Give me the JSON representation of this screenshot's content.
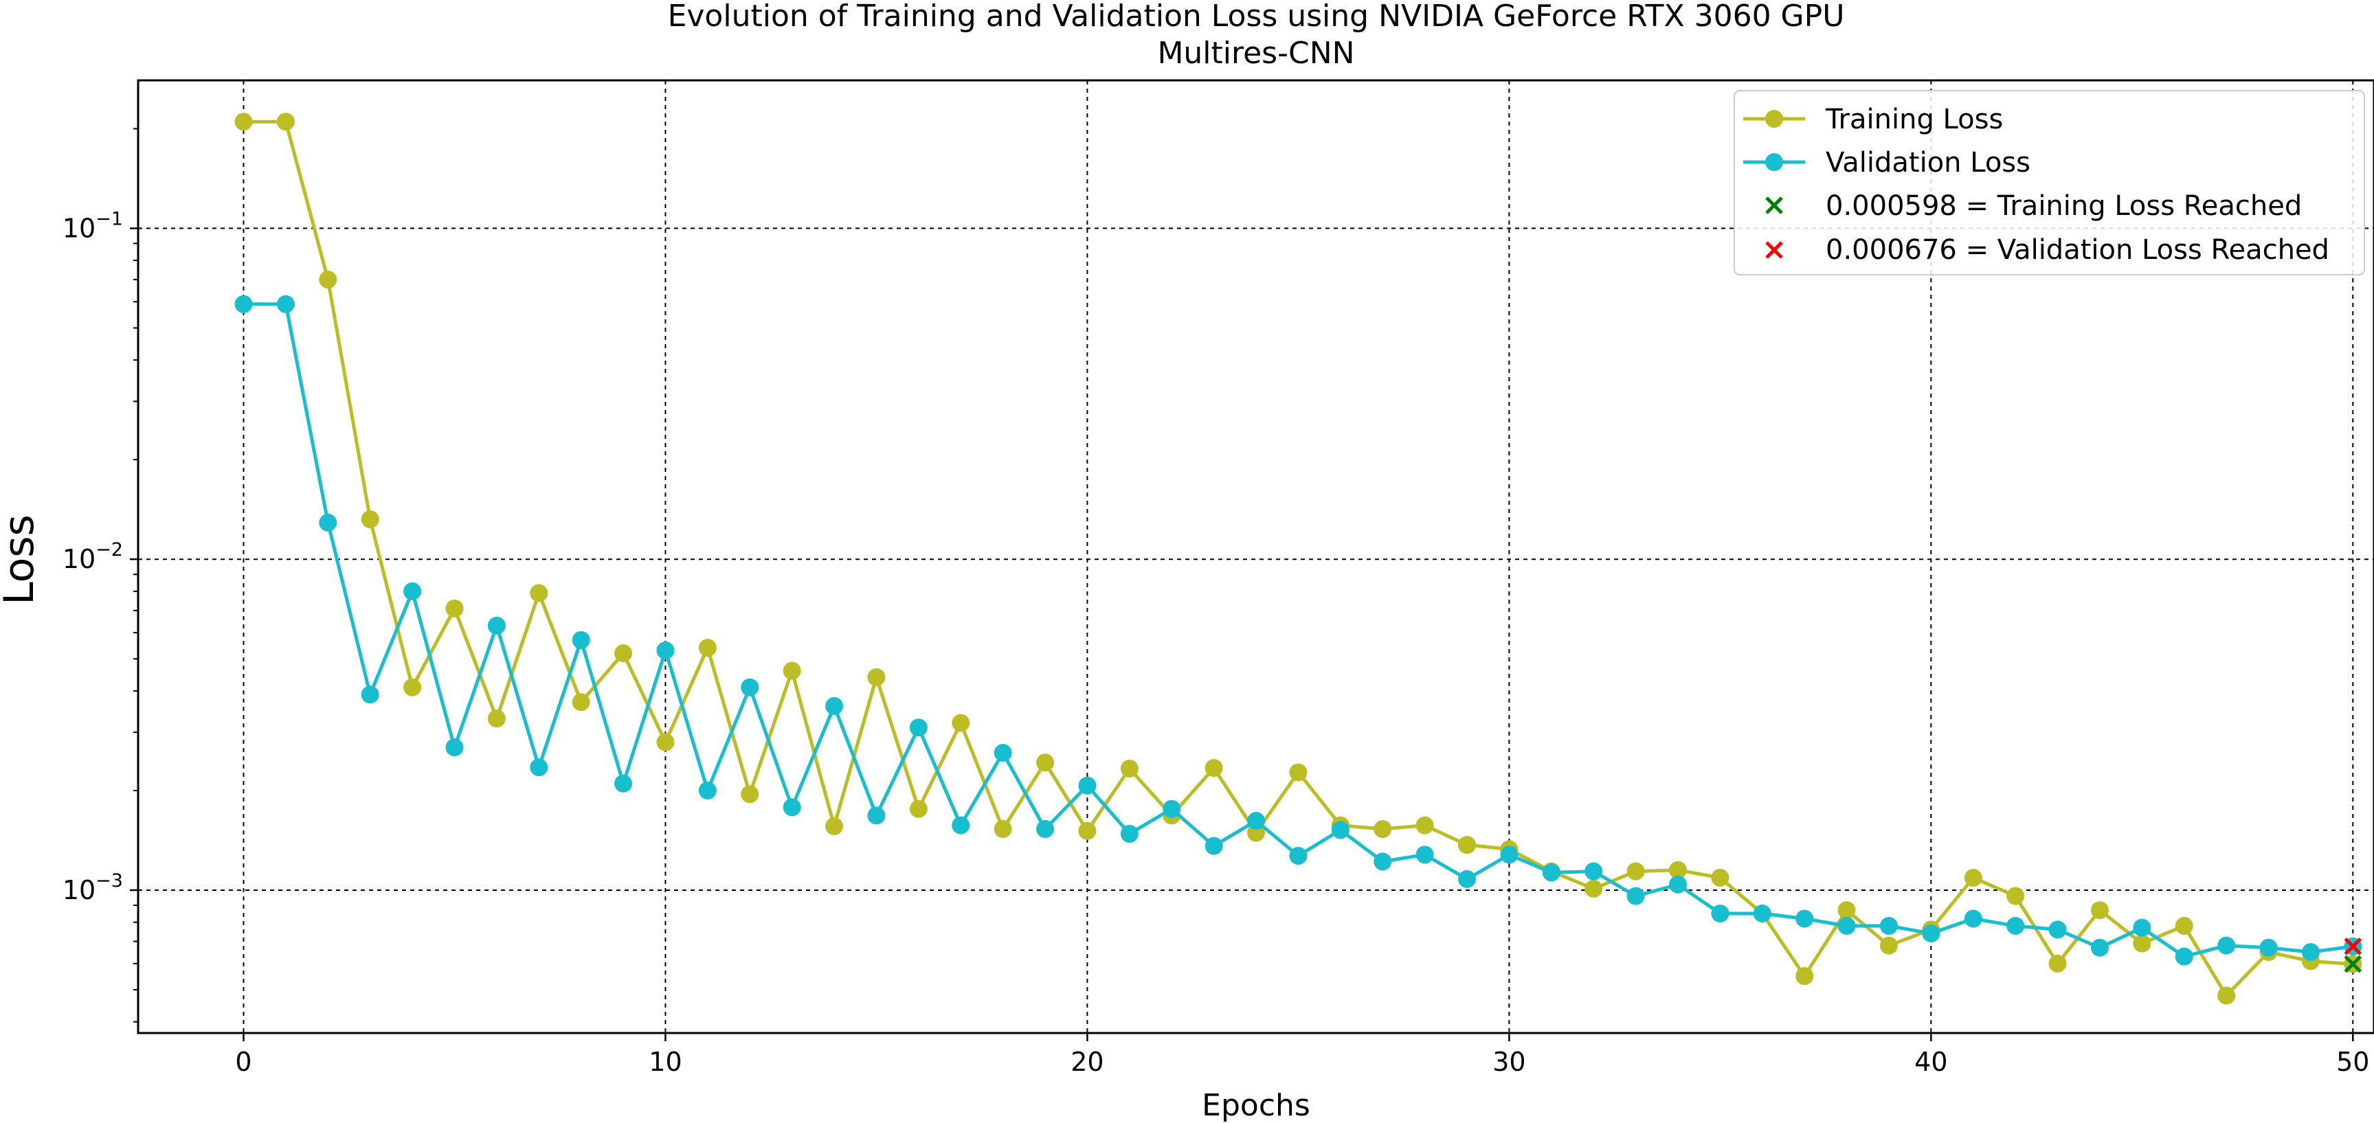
{
  "chart_data": {
    "type": "line",
    "title": "Evolution of Training and Validation Loss using NVIDIA GeForce RTX 3060 GPU",
    "subtitle": "Multires-CNN",
    "xlabel": "Epochs",
    "ylabel": "Loss",
    "yscale": "log",
    "xlim": [
      -2.5,
      50.5
    ],
    "ylim": [
      0.00037,
      0.28
    ],
    "grid": true,
    "legend_position": "top-right",
    "x_ticks": [
      {
        "value": 0,
        "label": "0"
      },
      {
        "value": 10,
        "label": "10"
      },
      {
        "value": 20,
        "label": "20"
      },
      {
        "value": 30,
        "label": "30"
      },
      {
        "value": 40,
        "label": "40"
      },
      {
        "value": 50,
        "label": "50"
      }
    ],
    "y_ticks": [
      {
        "value": 0.1,
        "base": "10",
        "exp": "−1"
      },
      {
        "value": 0.01,
        "base": "10",
        "exp": "−2"
      },
      {
        "value": 0.001,
        "base": "10",
        "exp": "−3"
      }
    ],
    "x": [
      0,
      1,
      2,
      3,
      4,
      5,
      6,
      7,
      8,
      9,
      10,
      11,
      12,
      13,
      14,
      15,
      16,
      17,
      18,
      19,
      20,
      21,
      22,
      23,
      24,
      25,
      26,
      27,
      28,
      29,
      30,
      31,
      32,
      33,
      34,
      35,
      36,
      37,
      38,
      39,
      40,
      41,
      42,
      43,
      44,
      45,
      46,
      47,
      48,
      49,
      50
    ],
    "series": [
      {
        "name": "Training Loss",
        "color": "#bcbd22",
        "values": [
          0.21,
          0.21,
          0.07,
          0.0132,
          0.0041,
          0.0071,
          0.0033,
          0.0079,
          0.0037,
          0.0052,
          0.0028,
          0.0054,
          0.00195,
          0.0046,
          0.00156,
          0.0044,
          0.00176,
          0.0032,
          0.00153,
          0.00243,
          0.00151,
          0.00233,
          0.00168,
          0.00234,
          0.00149,
          0.00227,
          0.00157,
          0.00153,
          0.00157,
          0.00137,
          0.00133,
          0.00114,
          0.00101,
          0.00114,
          0.00115,
          0.00109,
          0.00085,
          0.00055,
          0.00087,
          0.00068,
          0.00076,
          0.00109,
          0.00096,
          0.0006,
          0.00087,
          0.00069,
          0.00078,
          0.00048,
          0.00065,
          0.00061,
          0.000598
        ]
      },
      {
        "name": "Validation Loss",
        "color": "#17becf",
        "values": [
          0.059,
          0.059,
          0.0129,
          0.0039,
          0.008,
          0.0027,
          0.0063,
          0.00235,
          0.0057,
          0.0021,
          0.0053,
          0.002,
          0.0041,
          0.00178,
          0.0036,
          0.00168,
          0.0031,
          0.00157,
          0.0026,
          0.00153,
          0.00207,
          0.00148,
          0.00176,
          0.00136,
          0.00162,
          0.00127,
          0.00152,
          0.00122,
          0.00128,
          0.00108,
          0.00128,
          0.00113,
          0.00114,
          0.00096,
          0.00104,
          0.00085,
          0.00085,
          0.00082,
          0.00078,
          0.00078,
          0.00074,
          0.00082,
          0.00078,
          0.00076,
          0.00067,
          0.00077,
          0.00063,
          0.00068,
          0.00067,
          0.00065,
          0.000676
        ]
      }
    ],
    "markers": [
      {
        "label": "0.000598 = Training Loss Reached",
        "x": 50,
        "y": 0.000598,
        "color": "#008000"
      },
      {
        "label": "0.000676 = Validation Loss Reached",
        "x": 50,
        "y": 0.000676,
        "color": "#ff0000"
      }
    ]
  }
}
